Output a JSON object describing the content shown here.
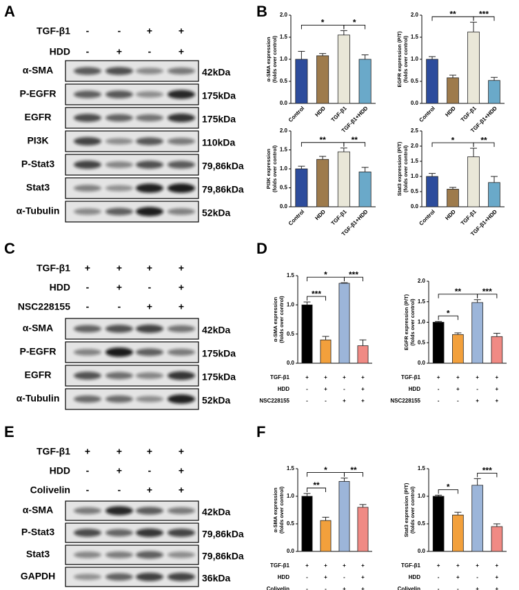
{
  "panel_labels": [
    "A",
    "B",
    "C",
    "D",
    "E",
    "F"
  ],
  "blots": [
    {
      "conditions": [
        {
          "name": "TGF-β1",
          "values": [
            "-",
            "-",
            "+",
            "+"
          ]
        },
        {
          "name": "HDD",
          "values": [
            "-",
            "+",
            "-",
            "+"
          ]
        }
      ],
      "rows": [
        {
          "protein": "α-SMA",
          "size": "42kDa"
        },
        {
          "protein": "P-EGFR",
          "size": "175kDa"
        },
        {
          "protein": "EGFR",
          "size": "175kDa"
        },
        {
          "protein": "PI3K",
          "size": "110kDa"
        },
        {
          "protein": "P-Stat3",
          "size": "79,86kDa"
        },
        {
          "protein": "Stat3",
          "size": "79,86kDa"
        },
        {
          "protein": "α-Tubulin",
          "size": "52kDa"
        }
      ]
    },
    {
      "conditions": [
        {
          "name": "TGF-β1",
          "values": [
            "+",
            "+",
            "+",
            "+"
          ]
        },
        {
          "name": "HDD",
          "values": [
            "-",
            "+",
            "-",
            "+"
          ]
        },
        {
          "name": "NSC228155",
          "values": [
            "-",
            "-",
            "+",
            "+"
          ]
        }
      ],
      "rows": [
        {
          "protein": "α-SMA",
          "size": "42kDa"
        },
        {
          "protein": "P-EGFR",
          "size": "175kDa"
        },
        {
          "protein": "EGFR",
          "size": "175kDa"
        },
        {
          "protein": "α-Tubulin",
          "size": "52kDa"
        }
      ]
    },
    {
      "conditions": [
        {
          "name": "TGF-β1",
          "values": [
            "+",
            "+",
            "+",
            "+"
          ]
        },
        {
          "name": "HDD",
          "values": [
            "-",
            "+",
            "-",
            "+"
          ]
        },
        {
          "name": "Colivelin",
          "values": [
            "-",
            "-",
            "+",
            "+"
          ]
        }
      ],
      "rows": [
        {
          "protein": "α-SMA",
          "size": "42kDa"
        },
        {
          "protein": "P-Stat3",
          "size": "79,86kDa"
        },
        {
          "protein": "Stat3",
          "size": "79,86kDa"
        },
        {
          "protein": "GAPDH",
          "size": "36kDa"
        }
      ]
    }
  ],
  "chart_data": [
    {
      "type": "bar",
      "y_label": [
        "α-SMA expression",
        "(folds over control)"
      ],
      "categories": [
        "Control",
        "HDD",
        "TGF-β1",
        "TGF-β1+HDD"
      ],
      "values": [
        1.0,
        1.08,
        1.55,
        1.0
      ],
      "errors": [
        0.18,
        0.05,
        0.1,
        0.1
      ],
      "colors": [
        "#2d4c9c",
        "#9e7b4c",
        "#e9e7d8",
        "#6aa9c9"
      ],
      "ylim": [
        0,
        2
      ],
      "yticks": [
        {
          "value": 0,
          "label": "0.0"
        },
        0.5,
        {
          "value": 1,
          "label": "1.0"
        },
        1.5,
        {
          "value": 2,
          "label": "2.0"
        }
      ],
      "significance": [
        {
          "text": "*",
          "between": [
            0,
            2
          ]
        },
        {
          "text": "*",
          "between": [
            2,
            3
          ]
        }
      ]
    },
    {
      "type": "bar",
      "y_label": [
        "EGFR expression (P/T)",
        "(folds over control)"
      ],
      "categories": [
        "Control",
        "HDD",
        "TGF-β1",
        "TGF-β1+HDD"
      ],
      "values": [
        1.0,
        0.58,
        1.62,
        0.52
      ],
      "errors": [
        0.06,
        0.06,
        0.22,
        0.07
      ],
      "colors": [
        "#2d4c9c",
        "#9e7b4c",
        "#e9e7d8",
        "#6aa9c9"
      ],
      "ylim": [
        0,
        2
      ],
      "yticks": [
        {
          "value": 0,
          "label": "0.0"
        },
        0.5,
        {
          "value": 1,
          "label": "1.0"
        },
        1.5,
        {
          "value": 2,
          "label": "2.0"
        }
      ],
      "significance": [
        {
          "text": "**",
          "between": [
            0,
            2
          ]
        },
        {
          "text": "***",
          "between": [
            2,
            3
          ]
        }
      ]
    },
    {
      "type": "bar",
      "y_label": [
        "PI3K expression",
        "(folds over control)"
      ],
      "categories": [
        "Control",
        "HDD",
        "TGF-β1",
        "TGF-β1+HDD"
      ],
      "values": [
        1.0,
        1.25,
        1.45,
        0.92
      ],
      "errors": [
        0.07,
        0.08,
        0.1,
        0.12
      ],
      "colors": [
        "#2d4c9c",
        "#9e7b4c",
        "#e9e7d8",
        "#6aa9c9"
      ],
      "ylim": [
        0,
        2
      ],
      "yticks": [
        {
          "value": 0,
          "label": "0.0"
        },
        0.5,
        {
          "value": 1,
          "label": "1.0"
        },
        1.5,
        {
          "value": 2,
          "label": "2.0"
        }
      ],
      "significance": [
        {
          "text": "**",
          "between": [
            0,
            2
          ]
        },
        {
          "text": "**",
          "between": [
            2,
            3
          ]
        }
      ]
    },
    {
      "type": "bar",
      "y_label": [
        "Stat3 expression (P/T)",
        "(folds over control)"
      ],
      "categories": [
        "Control",
        "HDD",
        "TGF-β1",
        "TGF-β1+HDD"
      ],
      "values": [
        1.0,
        0.58,
        1.65,
        0.8
      ],
      "errors": [
        0.1,
        0.06,
        0.28,
        0.2
      ],
      "colors": [
        "#2d4c9c",
        "#9e7b4c",
        "#e9e7d8",
        "#6aa9c9"
      ],
      "ylim": [
        0,
        2.5
      ],
      "yticks": [
        {
          "value": 0,
          "label": "0.0"
        },
        0.5,
        {
          "value": 1,
          "label": "1.0"
        },
        1.5,
        {
          "value": 2,
          "label": "2.0"
        },
        2.5
      ],
      "significance": [
        {
          "text": "*",
          "between": [
            0,
            2
          ]
        },
        {
          "text": "**",
          "between": [
            2,
            3
          ]
        }
      ]
    },
    {
      "type": "bar",
      "y_label": [
        "α-SMA expression",
        "(folds over control)"
      ],
      "conditions": [
        {
          "name": "TGF-β1",
          "values": [
            "+",
            "+",
            "+",
            "+"
          ]
        },
        {
          "name": "HDD",
          "values": [
            "-",
            "+",
            "-",
            "+"
          ]
        },
        {
          "name": "NSC228155",
          "values": [
            "-",
            "-",
            "+",
            "+"
          ]
        }
      ],
      "values": [
        1.0,
        0.4,
        1.37,
        0.3
      ],
      "errors": [
        0.05,
        0.06,
        0.01,
        0.1
      ],
      "colors": [
        "#000000",
        "#f2a03c",
        "#9cb5d9",
        "#f08a84"
      ],
      "ylim": [
        0,
        1.5
      ],
      "yticks": [
        {
          "value": 0,
          "label": "0.0"
        },
        0.5,
        {
          "value": 1,
          "label": "1.0"
        },
        1.5
      ],
      "significance": [
        {
          "text": "***",
          "between": [
            0,
            1
          ]
        },
        {
          "text": "***",
          "between": [
            2,
            3
          ]
        },
        {
          "text": "*",
          "between": [
            0,
            2
          ]
        }
      ]
    },
    {
      "type": "bar",
      "y_label": [
        "EGFR expression (P/T)",
        "(folds over control)"
      ],
      "conditions": [
        {
          "name": "TGF-β1",
          "values": [
            "+",
            "+",
            "+",
            "+"
          ]
        },
        {
          "name": "HDD",
          "values": [
            "-",
            "+",
            "-",
            "+"
          ]
        },
        {
          "name": "NSC228155",
          "values": [
            "-",
            "-",
            "+",
            "+"
          ]
        }
      ],
      "values": [
        1.0,
        0.7,
        1.48,
        0.65
      ],
      "errors": [
        0.02,
        0.04,
        0.07,
        0.08
      ],
      "colors": [
        "#000000",
        "#f2a03c",
        "#9cb5d9",
        "#f08a84"
      ],
      "ylim": [
        0,
        2
      ],
      "yticks": [
        {
          "value": 0,
          "label": "0.0"
        },
        0.5,
        {
          "value": 1,
          "label": "1.0"
        },
        1.5,
        {
          "value": 2,
          "label": "2.0"
        }
      ],
      "significance": [
        {
          "text": "*",
          "between": [
            0,
            1
          ]
        },
        {
          "text": "***",
          "between": [
            2,
            3
          ]
        },
        {
          "text": "**",
          "between": [
            0,
            2
          ]
        }
      ]
    },
    {
      "type": "bar",
      "y_label": [
        "α-SMA expression",
        "(folds over control)"
      ],
      "conditions": [
        {
          "name": "TGF-β1",
          "values": [
            "+",
            "+",
            "+",
            "+"
          ]
        },
        {
          "name": "HDD",
          "values": [
            "-",
            "+",
            "-",
            "+"
          ]
        },
        {
          "name": "Colivelin",
          "values": [
            "-",
            "-",
            "+",
            "+"
          ]
        }
      ],
      "values": [
        1.0,
        0.56,
        1.27,
        0.8
      ],
      "errors": [
        0.05,
        0.06,
        0.06,
        0.05
      ],
      "colors": [
        "#000000",
        "#f2a03c",
        "#9cb5d9",
        "#f08a84"
      ],
      "ylim": [
        0,
        1.5
      ],
      "yticks": [
        {
          "value": 0,
          "label": "0.0"
        },
        0.5,
        {
          "value": 1,
          "label": "1.0"
        },
        1.5
      ],
      "significance": [
        {
          "text": "**",
          "between": [
            0,
            1
          ]
        },
        {
          "text": "**",
          "between": [
            2,
            3
          ]
        },
        {
          "text": "*",
          "between": [
            0,
            2
          ]
        }
      ]
    },
    {
      "type": "bar",
      "y_label": [
        "Stat3 expression (P/T)",
        "(folds over control)"
      ],
      "conditions": [
        {
          "name": "TGF-β1",
          "values": [
            "+",
            "+",
            "+",
            "+"
          ]
        },
        {
          "name": "HDD",
          "values": [
            "-",
            "+",
            "-",
            "+"
          ]
        },
        {
          "name": "Colivelin",
          "values": [
            "-",
            "-",
            "+",
            "+"
          ]
        }
      ],
      "values": [
        1.0,
        0.66,
        1.2,
        0.45
      ],
      "errors": [
        0.02,
        0.05,
        0.12,
        0.05
      ],
      "colors": [
        "#000000",
        "#f2a03c",
        "#9cb5d9",
        "#f08a84"
      ],
      "ylim": [
        0,
        1.5
      ],
      "yticks": [
        {
          "value": 0,
          "label": "0.0"
        },
        0.5,
        {
          "value": 1,
          "label": "1.0"
        },
        1.5
      ],
      "significance": [
        {
          "text": "*",
          "between": [
            0,
            1
          ]
        },
        {
          "text": "***",
          "between": [
            2,
            3
          ]
        }
      ]
    }
  ]
}
